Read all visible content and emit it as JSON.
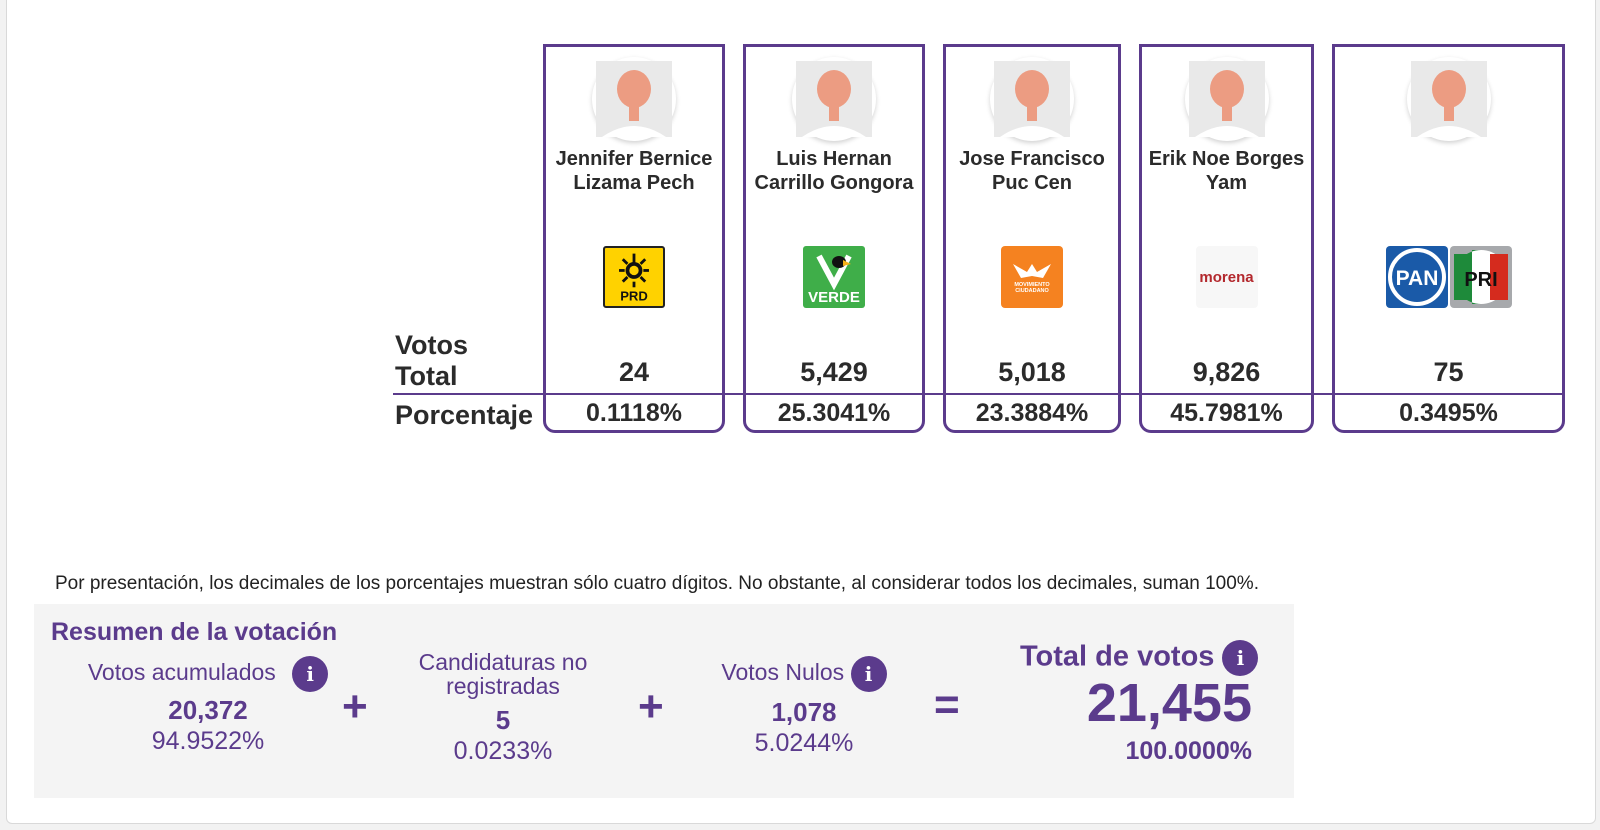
{
  "row_labels": {
    "votos": "Votos",
    "total": "Total",
    "porcentaje": "Porcentaje"
  },
  "candidates": [
    {
      "name_line1": "Jennifer Bernice",
      "name_line2": "Lizama Pech",
      "party": "PRD",
      "votes": "24",
      "percentage": "0.1118%"
    },
    {
      "name_line1": "Luis Hernan",
      "name_line2": "Carrillo Gongora",
      "party": "VERDE",
      "votes": "5,429",
      "percentage": "25.3041%"
    },
    {
      "name_line1": "Jose Francisco",
      "name_line2": "Puc Cen",
      "party": "MOVIMIENTO CIUDADANO",
      "votes": "5,018",
      "percentage": "23.3884%"
    },
    {
      "name_line1": "Erik Noe Borges",
      "name_line2": "Yam",
      "party": "morena",
      "votes": "9,826",
      "percentage": "45.7981%"
    },
    {
      "name_line1": "",
      "name_line2": "",
      "party": "PAN-PRI",
      "votes": "75",
      "percentage": "0.3495%"
    }
  ],
  "logos": {
    "prd": "PRD",
    "verde": "VERDE",
    "mc_line1": "MOVIMIENTO",
    "mc_line2": "CIUDADANO",
    "morena": "morena",
    "pan": "PAN",
    "pri": "PRI"
  },
  "note": "Por presentación, los decimales de los porcentajes muestran sólo cuatro dígitos. No obstante, al considerar todos los decimales, suman 100%.",
  "summary": {
    "title": "Resumen de la votación",
    "acumulados": {
      "label": "Votos acumulados",
      "votes": "20,372",
      "percentage": "94.9522%"
    },
    "no_registradas": {
      "label_line1": "Candidaturas no",
      "label_line2": "registradas",
      "votes": "5",
      "percentage": "0.0233%"
    },
    "nulos": {
      "label": "Votos Nulos",
      "votes": "1,078",
      "percentage": "5.0244%"
    },
    "total": {
      "label": "Total de votos",
      "votes": "21,455",
      "percentage": "100.0000%"
    },
    "op_plus": "+",
    "op_equals": "=",
    "info_glyph": "i"
  },
  "colors": {
    "accent": "#5b3b8c",
    "text": "#2b2b2b",
    "summary_bg": "#f4f4f4"
  },
  "icons": [
    "avatar-icon",
    "info-icon",
    "prd-logo",
    "verde-logo",
    "movimiento-ciudadano-logo",
    "morena-logo",
    "pan-logo",
    "pri-logo"
  ]
}
